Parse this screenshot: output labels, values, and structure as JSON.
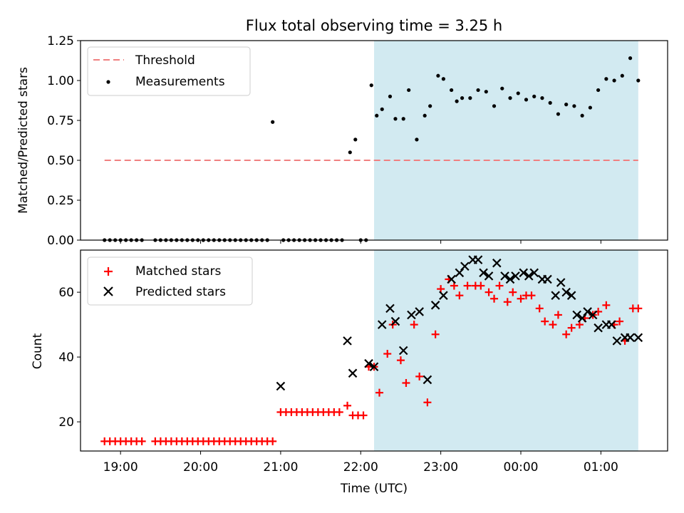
{
  "figure": {
    "title": "Flux total observing time = 3.25 h"
  },
  "chart_data": [
    {
      "type": "scatter",
      "ylabel": "Matched/Predicted stars",
      "xlabel": "",
      "ylim": [
        0,
        1.25
      ],
      "y_ticks": [
        "0.00",
        "0.25",
        "0.50",
        "0.75",
        "1.00",
        "1.25"
      ],
      "grid": false,
      "legend_placement": "upper-left",
      "threshold": {
        "name": "Threshold",
        "value": 0.5,
        "x_start": "18:48",
        "x_end": "01:28",
        "color": "#f08080",
        "style": "dashed"
      },
      "observing_window": {
        "start": "22:10",
        "end": "01:28",
        "color": "#add8e6"
      },
      "series": [
        {
          "name": "Measurements",
          "marker": "dot",
          "color": "#000000",
          "x": [
            "18:48",
            "18:52",
            "18:56",
            "19:00",
            "19:04",
            "19:08",
            "19:12",
            "19:16",
            "19:26",
            "19:30",
            "19:34",
            "19:38",
            "19:42",
            "19:46",
            "19:50",
            "19:54",
            "19:58",
            "20:02",
            "20:06",
            "20:10",
            "20:14",
            "20:18",
            "20:22",
            "20:26",
            "20:30",
            "20:34",
            "20:38",
            "20:42",
            "20:46",
            "20:50",
            "20:54",
            "21:02",
            "21:06",
            "21:10",
            "21:14",
            "21:18",
            "21:22",
            "21:26",
            "21:30",
            "21:34",
            "21:38",
            "21:42",
            "21:46",
            "21:52",
            "21:56",
            "22:00",
            "22:04",
            "22:08",
            "22:12",
            "22:16",
            "22:22",
            "22:26",
            "22:32",
            "22:36",
            "22:42",
            "22:48",
            "22:52",
            "22:58",
            "23:02",
            "23:08",
            "23:12",
            "23:16",
            "23:22",
            "23:28",
            "23:34",
            "23:40",
            "23:46",
            "23:52",
            "23:58",
            "00:04",
            "00:10",
            "00:16",
            "00:22",
            "00:28",
            "00:34",
            "00:40",
            "00:46",
            "00:52",
            "00:58",
            "01:04",
            "01:10",
            "01:16",
            "01:22",
            "01:28"
          ],
          "y": [
            0,
            0,
            0,
            0,
            0,
            0,
            0,
            0,
            0,
            0,
            0,
            0,
            0,
            0,
            0,
            0,
            0,
            0,
            0,
            0,
            0,
            0,
            0,
            0,
            0,
            0,
            0,
            0,
            0,
            0,
            0.74,
            0,
            0,
            0,
            0,
            0,
            0,
            0,
            0,
            0,
            0,
            0,
            0,
            0.55,
            0.63,
            0,
            0,
            0.97,
            0.78,
            0.82,
            0.9,
            0.76,
            0.76,
            0.94,
            0.63,
            0.78,
            0.84,
            1.03,
            1.01,
            0.94,
            0.87,
            0.89,
            0.89,
            0.94,
            0.93,
            0.84,
            0.95,
            0.89,
            0.92,
            0.88,
            0.9,
            0.89,
            0.86,
            0.79,
            0.85,
            0.84,
            0.78,
            0.83,
            0.94,
            1.01,
            1.0,
            1.03,
            1.14,
            1.0
          ]
        }
      ]
    },
    {
      "type": "scatter",
      "xlabel": "Time (UTC)",
      "ylabel": "Count",
      "ylim": [
        11,
        73
      ],
      "y_ticks": [
        "20",
        "40",
        "60"
      ],
      "x_ticks": [
        "19:00",
        "20:00",
        "21:00",
        "22:00",
        "23:00",
        "00:00",
        "01:00"
      ],
      "grid": false,
      "legend_placement": "upper-left",
      "observing_window": {
        "start": "22:10",
        "end": "01:28",
        "color": "#add8e6"
      },
      "series": [
        {
          "name": "Matched stars",
          "marker": "plus",
          "color": "#ff0000",
          "x": [
            "18:48",
            "18:52",
            "18:56",
            "19:00",
            "19:04",
            "19:08",
            "19:12",
            "19:16",
            "19:26",
            "19:30",
            "19:34",
            "19:38",
            "19:42",
            "19:46",
            "19:50",
            "19:54",
            "19:58",
            "20:02",
            "20:06",
            "20:10",
            "20:14",
            "20:18",
            "20:22",
            "20:26",
            "20:30",
            "20:34",
            "20:38",
            "20:42",
            "20:46",
            "20:50",
            "20:54",
            "21:00",
            "21:04",
            "21:08",
            "21:12",
            "21:16",
            "21:20",
            "21:24",
            "21:28",
            "21:32",
            "21:36",
            "21:40",
            "21:44",
            "21:50",
            "21:54",
            "21:58",
            "22:02",
            "22:06",
            "22:10",
            "22:14",
            "22:20",
            "22:24",
            "22:30",
            "22:34",
            "22:40",
            "22:44",
            "22:50",
            "22:56",
            "23:00",
            "23:06",
            "23:10",
            "23:14",
            "23:20",
            "23:26",
            "23:30",
            "23:36",
            "23:40",
            "23:44",
            "23:50",
            "23:54",
            "24:00",
            "24:04",
            "24:08",
            "24:14",
            "24:18",
            "24:24",
            "24:28",
            "24:34",
            "24:38",
            "24:44",
            "24:48",
            "24:54",
            "24:58",
            "25:04",
            "25:10",
            "25:14",
            "25:18",
            "25:24",
            "25:28"
          ],
          "y": [
            14,
            14,
            14,
            14,
            14,
            14,
            14,
            14,
            14,
            14,
            14,
            14,
            14,
            14,
            14,
            14,
            14,
            14,
            14,
            14,
            14,
            14,
            14,
            14,
            14,
            14,
            14,
            14,
            14,
            14,
            14,
            23,
            23,
            23,
            23,
            23,
            23,
            23,
            23,
            23,
            23,
            23,
            23,
            25,
            22,
            22,
            22,
            37,
            37,
            29,
            41,
            50,
            39,
            32,
            50,
            34,
            26,
            47,
            61,
            64,
            62,
            59,
            62,
            62,
            62,
            60,
            58,
            62,
            57,
            60,
            58,
            59,
            59,
            55,
            51,
            50,
            53,
            47,
            49,
            50,
            52,
            53,
            54,
            56,
            50,
            51,
            45,
            55,
            55
          ]
        },
        {
          "name": "Predicted stars",
          "marker": "x",
          "color": "#000000",
          "x": [
            "21:00",
            "21:50",
            "21:54",
            "22:06",
            "22:10",
            "22:16",
            "22:22",
            "22:26",
            "22:32",
            "22:38",
            "22:44",
            "22:50",
            "22:56",
            "23:02",
            "23:08",
            "23:14",
            "23:18",
            "23:24",
            "23:28",
            "23:32",
            "23:36",
            "23:42",
            "23:48",
            "23:52",
            "23:56",
            "24:02",
            "24:06",
            "24:10",
            "24:16",
            "24:20",
            "24:26",
            "24:30",
            "24:34",
            "24:38",
            "24:42",
            "24:46",
            "24:50",
            "24:54",
            "24:58",
            "25:04",
            "25:08",
            "25:12",
            "25:18",
            "25:22",
            "25:28"
          ],
          "y": [
            31,
            45,
            35,
            38,
            37,
            50,
            55,
            51,
            42,
            53,
            54,
            33,
            56,
            59,
            64,
            66,
            68,
            70,
            70,
            66,
            65,
            69,
            65,
            64,
            65,
            66,
            65,
            66,
            64,
            64,
            59,
            63,
            60,
            59,
            53,
            52,
            54,
            53,
            49,
            50,
            50,
            45,
            46,
            46,
            46
          ]
        }
      ]
    }
  ]
}
